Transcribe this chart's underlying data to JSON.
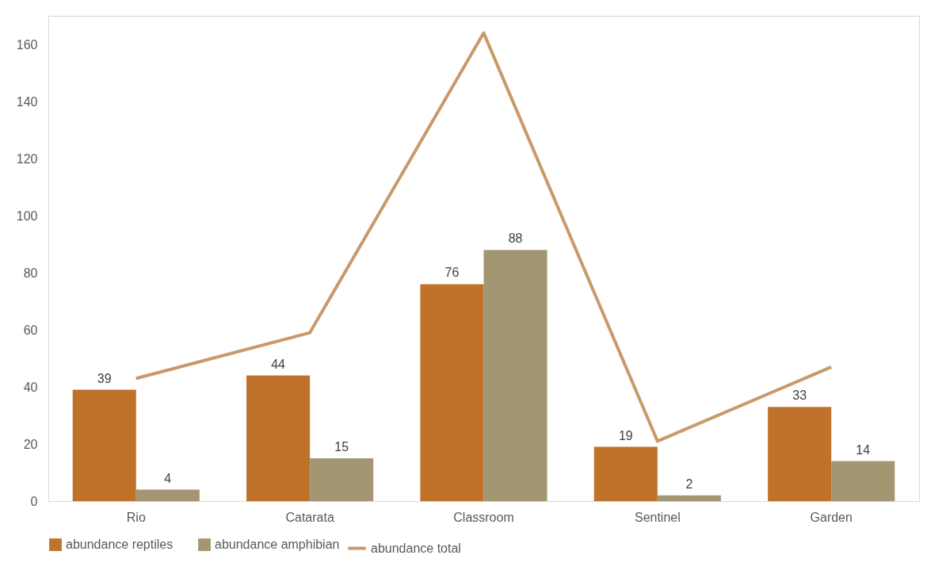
{
  "chart_data": {
    "type": "bar",
    "categories": [
      "Rio",
      "Catarata",
      "Classroom",
      "Sentinel",
      "Garden"
    ],
    "series": [
      {
        "name": "abundance reptiles",
        "color": "#c0712a",
        "values": [
          39,
          44,
          76,
          19,
          33
        ],
        "value_labels": [
          "39",
          "44",
          "76",
          "19",
          "33"
        ]
      },
      {
        "name": "abundance amphibian",
        "color": "#a39673",
        "values": [
          4,
          15,
          88,
          2,
          14
        ],
        "value_labels": [
          "4",
          "15",
          "88",
          "2",
          "14"
        ]
      },
      {
        "name": "abundance total",
        "type": "line",
        "color": "#c9996b",
        "values": [
          43,
          59,
          164,
          21,
          47
        ]
      }
    ],
    "ylim": [
      0,
      170
    ],
    "yticks": [
      0,
      20,
      40,
      60,
      80,
      100,
      120,
      140,
      160
    ],
    "grid": false,
    "legend": "bottom",
    "line_style": "solid",
    "marker": "none"
  }
}
